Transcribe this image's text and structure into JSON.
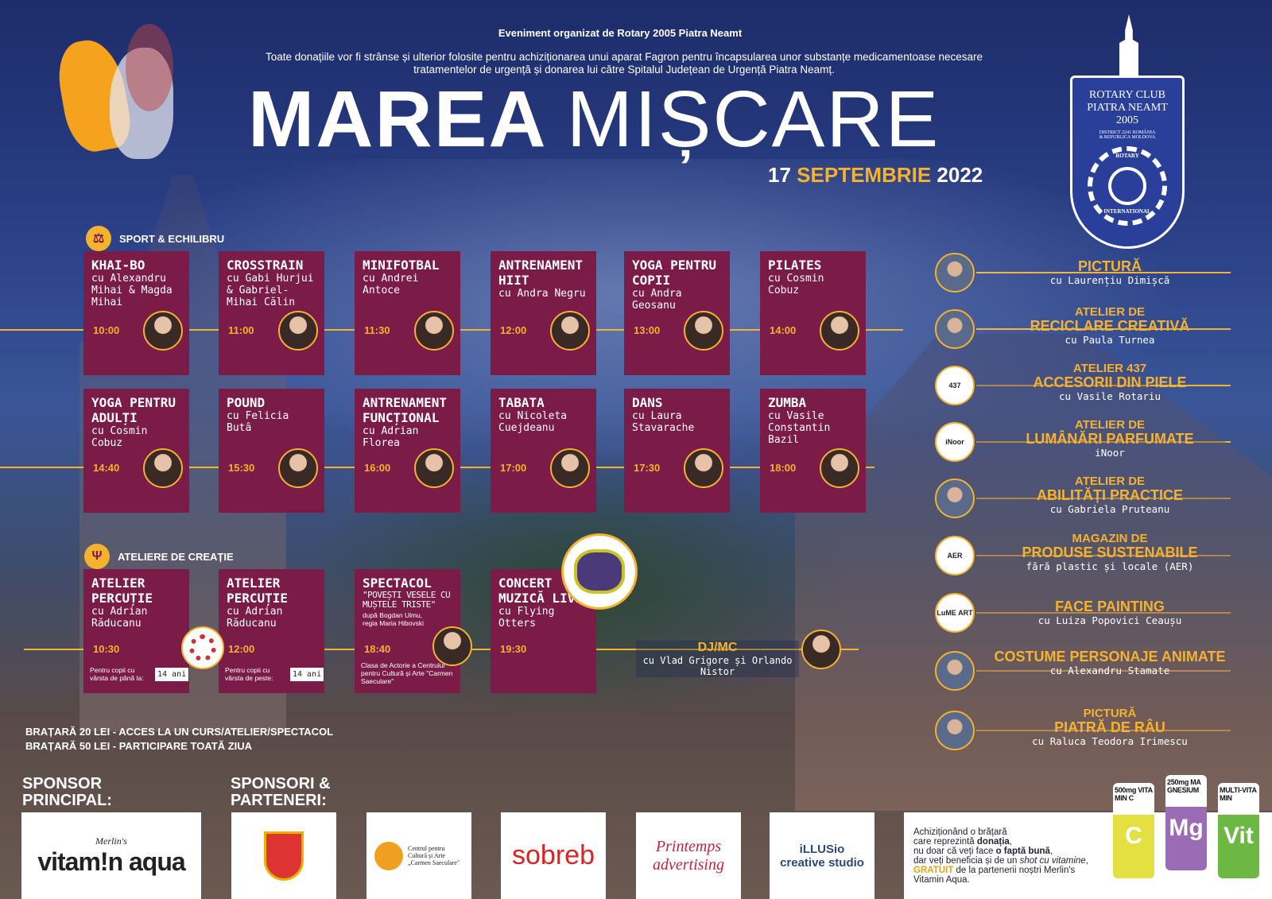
{
  "header": {
    "organizer": "Eveniment organizat de Rotary 2005 Piatra Neamt",
    "description": "Toate donațiile vor fi strânse și ulterior folosite pentru achiziționarea unui aparat Fagron pentru încapsularea unor substanțe medicamentoase necesare tratamentelor de urgență și donarea lui către Spitalul Județean de Urgență Piatra Neamț.",
    "title_bold": "MAREA",
    "title_light": "MIȘCARE",
    "date_day": "17",
    "date_month": "SEPTEMBRIE",
    "date_year": "2022"
  },
  "rotary": {
    "line1": "ROTARY CLUB",
    "line2": "PIATRA NEAMT",
    "line3": "2005",
    "line4": "DISTRICT 2241 ROMÂNIA",
    "line5": "& REPUBLICA MOLDOVA",
    "ring_top": "ROTARY",
    "ring_bottom": "INTERNATIONAL"
  },
  "sport": {
    "label": "SPORT & ECHILIBRU",
    "icon": "balance-icon",
    "cards": [
      {
        "title": "KHAI-BO",
        "sub": "cu Alexandru Mihai & Magda Mihai",
        "time": "10:00"
      },
      {
        "title": "CROSSTRAIN",
        "sub": "cu Gabi Hurjui & Gabriel-Mihai Călin",
        "time": "11:00"
      },
      {
        "title": "MINIFOTBAL",
        "sub": "cu Andrei Antoce",
        "time": "11:30"
      },
      {
        "title": "ANTRENAMENT HIIT",
        "sub": "cu Andra Negru",
        "time": "12:00"
      },
      {
        "title": "YOGA PENTRU COPII",
        "sub": "cu Andra Geosanu",
        "time": "13:00"
      },
      {
        "title": "PILATES",
        "sub": "cu Cosmin Cobuz",
        "time": "14:00"
      },
      {
        "title": "YOGA PENTRU ADULȚI",
        "sub": "cu Cosmin Cobuz",
        "time": "14:40"
      },
      {
        "title": "POUND",
        "sub": "cu Felicia Butâ",
        "time": "15:30"
      },
      {
        "title": "ANTRENAMENT FUNCȚIONAL",
        "sub": "cu Adrian Florea",
        "time": "16:00"
      },
      {
        "title": "TABATA",
        "sub": "cu Nicoleta Cuejdeanu",
        "time": "17:00"
      },
      {
        "title": "DANS",
        "sub": "cu Laura Stavarache",
        "time": "17:30"
      },
      {
        "title": "ZUMBA",
        "sub": "cu Vasile Constantin Bazil",
        "time": "18:00"
      }
    ]
  },
  "ateliere": {
    "label": "ATELIERE DE CREAȚIE",
    "icon": "workshop-icon",
    "cards": [
      {
        "title": "ATELIER PERCUȚIE",
        "sub": "cu Adrian Răducanu",
        "time": "10:30",
        "note": "Pentru copii cu vârsta de până la:",
        "age": "14 ani"
      },
      {
        "title": "ATELIER PERCUȚIE",
        "sub": "cu Adrian Răducanu",
        "time": "12:00",
        "note": "Pentru copii cu vârsta de peste:",
        "age": "14 ani"
      },
      {
        "title": "SPECTACOL",
        "sub": "\"POVEȘTI VESELE CU MUȘTELE TRISTE\"",
        "extra": "după Bogdan Ulmu, regia Maria Hibovski",
        "time": "18:40",
        "note": "Clasa de Actorie a Centrului pentru Cultură și Arte \"Carmen Saeculare\""
      },
      {
        "title": "CONCERT MUZICĂ live",
        "sub": "cu Flying Otters",
        "time": "19:30"
      }
    ],
    "dj_title": "DJ/MC",
    "dj_sub": "cu Vlad Grigore și Orlando Nistor"
  },
  "right_list": [
    {
      "l1": "",
      "l2": "PICTURĂ",
      "sub": "cu Laurențiu Dimișcă"
    },
    {
      "l1": "ATELIER DE",
      "l2": "RECICLARE CREATIVĂ",
      "sub": "cu Paula Turnea"
    },
    {
      "l1": "ATELIER 437",
      "l2": "ACCESORII DIN PIELE",
      "sub": "cu Vasile Rotariu"
    },
    {
      "l1": "ATELIER DE",
      "l2": "LUMÂNĂRI PARFUMATE",
      "sub": "iNoor"
    },
    {
      "l1": "ATELIER DE",
      "l2": "ABILITĂȚI PRACTICE",
      "sub": "cu Gabriela Pruteanu"
    },
    {
      "l1": "MAGAZIN DE",
      "l2": "PRODUSE SUSTENABILE",
      "sub": "fără plastic și locale (AER)"
    },
    {
      "l1": "",
      "l2": "FACE PAINTING",
      "sub": "cu Luiza Popovici Ceaușu"
    },
    {
      "l1": "",
      "l2": "COSTUME PERSONAJE ANIMATE",
      "sub": "cu Alexandru Stamate"
    },
    {
      "l1": "PICTURĂ",
      "l2": "PIATRĂ DE RÂU",
      "sub": "cu Raluca Teodora Irimescu"
    }
  ],
  "logos_right": [
    "",
    "",
    "437",
    "iNoor",
    "",
    "AER",
    "LuME ART",
    "",
    ""
  ],
  "pricing": [
    "BRAȚARĂ 20 LEI  - ACCES LA UN CURS/ATELIER/SPECTACOL",
    "BRAȚARĂ 50 LEI  - PARTICIPARE TOATĂ ZIUA"
  ],
  "sponsors": {
    "main_label": "SPONSOR PRINCIPAL:",
    "main_brand_top": "Merlin's",
    "main_brand": "vitam!n aqua",
    "partners_label": "SPONSORI & PARTENERI:",
    "partners": [
      "",
      "Centrul pentru Cultură și Arte „Carmen Saeculare\"",
      "sobreb",
      "Printemps advertising",
      "iLLUSio creative studio"
    ],
    "cta_lines": [
      "Achiziționând o brățară",
      "care reprezintă ",
      "donația",
      ",",
      "nu doar că veți face ",
      "o faptă bună",
      ",",
      "dar veți beneficia și de un ",
      "shot cu vitamine",
      ",",
      "GRATUIT",
      " de la partenerii noștri Merlin's Vitamin Aqua."
    ],
    "cans": [
      {
        "top": "500mg VITAMIN C",
        "big": "C",
        "color": "#e4e042"
      },
      {
        "top": "250mg MAGNESIUM",
        "big": "Mg",
        "color": "#9b6cb6"
      },
      {
        "top": "MULTI-VITAMIN",
        "big": "Vit",
        "color": "#6cb842"
      }
    ]
  },
  "colors": {
    "card": "#7b1b47",
    "accent": "#f5b22e",
    "background": "#22347a"
  }
}
